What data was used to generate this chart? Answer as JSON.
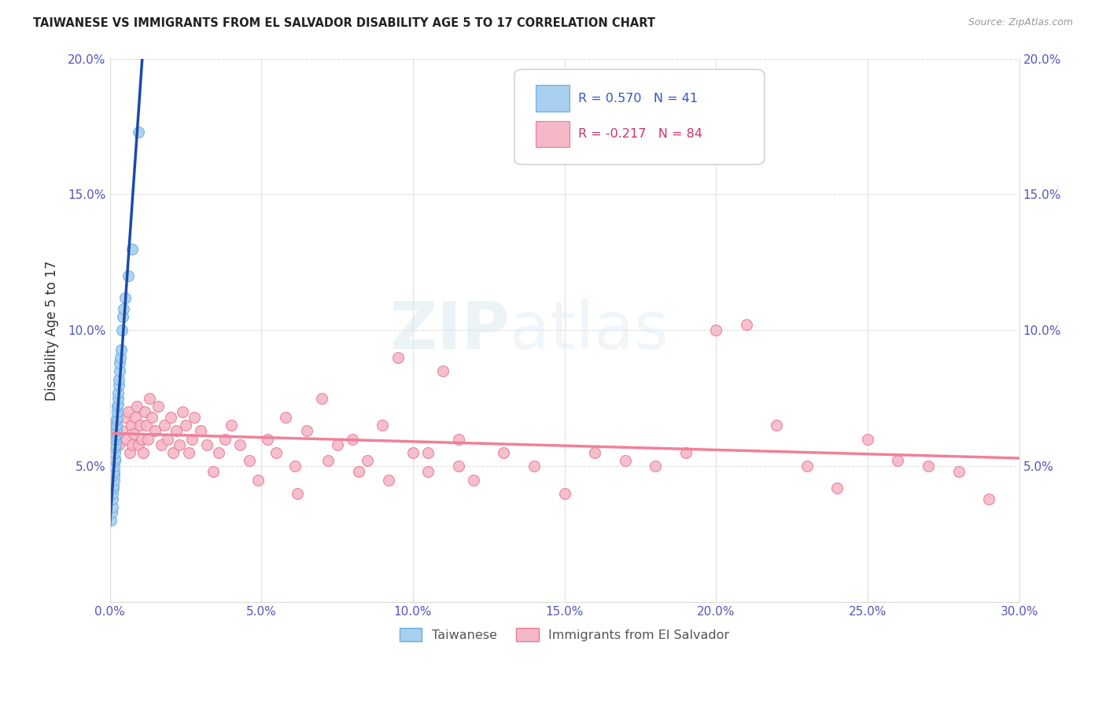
{
  "title": "TAIWANESE VS IMMIGRANTS FROM EL SALVADOR DISABILITY AGE 5 TO 17 CORRELATION CHART",
  "source": "Source: ZipAtlas.com",
  "ylabel": "Disability Age 5 to 17",
  "xmin": 0.0,
  "xmax": 0.3,
  "ymin": 0.0,
  "ymax": 0.2,
  "xticks": [
    0.0,
    0.05,
    0.1,
    0.15,
    0.2,
    0.25,
    0.3
  ],
  "yticks": [
    0.0,
    0.05,
    0.1,
    0.15,
    0.2
  ],
  "xtick_labels": [
    "0.0%",
    "5.0%",
    "10.0%",
    "15.0%",
    "20.0%",
    "25.0%",
    "30.0%"
  ],
  "ytick_labels": [
    "",
    "5.0%",
    "10.0%",
    "15.0%",
    "20.0%"
  ],
  "taiwanese_color": "#a8cff0",
  "taiwanese_edge_color": "#6aaee0",
  "salvador_color": "#f5b8c8",
  "salvador_edge_color": "#e87a95",
  "taiwanese_line_color": "#1a4aaa",
  "salvador_line_color": "#f08098",
  "R_taiwanese": 0.57,
  "N_taiwanese": 41,
  "R_salvador": -0.217,
  "N_salvador": 84,
  "legend_taiwanese": "Taiwanese",
  "legend_salvador": "Immigrants from El Salvador",
  "taiwanese_x": [
    0.0005,
    0.0007,
    0.0008,
    0.001,
    0.001,
    0.0012,
    0.0012,
    0.0013,
    0.0014,
    0.0015,
    0.0015,
    0.0016,
    0.0017,
    0.0018,
    0.0018,
    0.0019,
    0.002,
    0.002,
    0.0021,
    0.0022,
    0.0022,
    0.0023,
    0.0024,
    0.0025,
    0.0025,
    0.0026,
    0.0027,
    0.0028,
    0.0029,
    0.003,
    0.0032,
    0.0033,
    0.0035,
    0.0037,
    0.004,
    0.0042,
    0.0045,
    0.005,
    0.006,
    0.0075,
    0.0095
  ],
  "taiwanese_y": [
    0.03,
    0.033,
    0.035,
    0.038,
    0.04,
    0.042,
    0.043,
    0.045,
    0.047,
    0.048,
    0.05,
    0.052,
    0.053,
    0.055,
    0.057,
    0.058,
    0.06,
    0.061,
    0.062,
    0.063,
    0.065,
    0.067,
    0.068,
    0.07,
    0.072,
    0.073,
    0.075,
    0.077,
    0.08,
    0.082,
    0.085,
    0.088,
    0.09,
    0.093,
    0.1,
    0.105,
    0.108,
    0.112,
    0.12,
    0.13,
    0.173
  ],
  "salvador_x": [
    0.001,
    0.002,
    0.003,
    0.004,
    0.005,
    0.0055,
    0.006,
    0.0065,
    0.007,
    0.0075,
    0.008,
    0.0085,
    0.009,
    0.0095,
    0.01,
    0.0105,
    0.011,
    0.0115,
    0.012,
    0.0125,
    0.013,
    0.014,
    0.015,
    0.016,
    0.017,
    0.018,
    0.019,
    0.02,
    0.021,
    0.022,
    0.023,
    0.024,
    0.025,
    0.026,
    0.027,
    0.028,
    0.03,
    0.032,
    0.034,
    0.036,
    0.038,
    0.04,
    0.043,
    0.046,
    0.049,
    0.052,
    0.055,
    0.058,
    0.061,
    0.065,
    0.07,
    0.075,
    0.08,
    0.085,
    0.09,
    0.095,
    0.1,
    0.105,
    0.11,
    0.115,
    0.12,
    0.13,
    0.14,
    0.15,
    0.16,
    0.17,
    0.18,
    0.19,
    0.2,
    0.21,
    0.22,
    0.23,
    0.24,
    0.25,
    0.26,
    0.27,
    0.28,
    0.29,
    0.105,
    0.115,
    0.062,
    0.072,
    0.082,
    0.092
  ],
  "salvador_y": [
    0.062,
    0.065,
    0.058,
    0.063,
    0.068,
    0.06,
    0.07,
    0.055,
    0.065,
    0.058,
    0.062,
    0.068,
    0.072,
    0.058,
    0.065,
    0.06,
    0.055,
    0.07,
    0.065,
    0.06,
    0.075,
    0.068,
    0.063,
    0.072,
    0.058,
    0.065,
    0.06,
    0.068,
    0.055,
    0.063,
    0.058,
    0.07,
    0.065,
    0.055,
    0.06,
    0.068,
    0.063,
    0.058,
    0.048,
    0.055,
    0.06,
    0.065,
    0.058,
    0.052,
    0.045,
    0.06,
    0.055,
    0.068,
    0.05,
    0.063,
    0.075,
    0.058,
    0.06,
    0.052,
    0.065,
    0.09,
    0.055,
    0.048,
    0.085,
    0.06,
    0.045,
    0.055,
    0.05,
    0.04,
    0.055,
    0.052,
    0.05,
    0.055,
    0.1,
    0.102,
    0.065,
    0.05,
    0.042,
    0.06,
    0.052,
    0.05,
    0.048,
    0.038,
    0.055,
    0.05,
    0.04,
    0.052,
    0.048,
    0.045
  ],
  "watermark_zip": "ZIP",
  "watermark_atlas": "atlas",
  "background_color": "#ffffff",
  "grid_color": "#e0e0e0",
  "tick_color": "#5555bb",
  "label_color": "#333333"
}
